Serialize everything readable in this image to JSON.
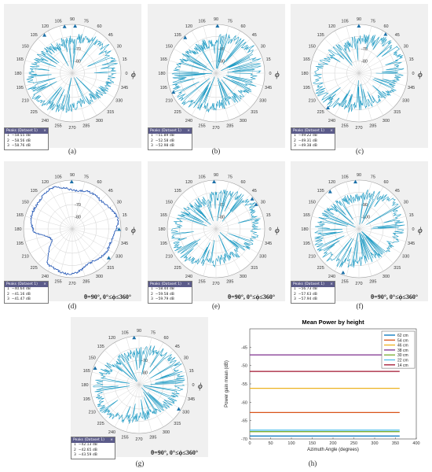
{
  "captions": [
    "(a)",
    "(b)",
    "(c)",
    "(d)",
    "(e)",
    "(f)",
    "(g)",
    "(h)"
  ],
  "theta_label": "θ=90°, 0°≤ϕ≤360°",
  "phi_symbol": "ϕ",
  "colors": {
    "trace": "#1f9bc4",
    "trace_dark": "#2a5cb8",
    "marker": "#1a6fa8",
    "grid": "#cfcfcf",
    "panel_bg": "#f0f0f0"
  },
  "chart_data": [
    {
      "id": "a",
      "type": "polar",
      "angle_ticks": [
        "0",
        "15",
        "30",
        "45",
        "60",
        "75",
        "90",
        "105",
        "120",
        "135",
        "150",
        "165",
        "180",
        "195",
        "210",
        "225",
        "240",
        "255",
        "270",
        "285",
        "300",
        "315",
        "330",
        "345"
      ],
      "radial_ticks": [
        "-80",
        "-70"
      ],
      "peaks_title": "Peaks (Dataset 1)",
      "peaks": [
        {
          "n": "1",
          "v": "−58.55 dB"
        },
        {
          "n": "2",
          "v": "−58.56 dB"
        },
        {
          "n": "3",
          "v": "−58.76 dB"
        }
      ]
    },
    {
      "id": "b",
      "type": "polar",
      "angle_ticks": [
        "0",
        "15",
        "30",
        "45",
        "60",
        "75",
        "90",
        "105",
        "120",
        "135",
        "150",
        "165",
        "180",
        "195",
        "210",
        "225",
        "240",
        "255",
        "270",
        "285",
        "300",
        "315",
        "330",
        "345"
      ],
      "radial_ticks": [
        "-90",
        "-80"
      ],
      "peaks_title": "Peaks (Dataset 1)",
      "peaks": [
        {
          "n": "1",
          "v": "−51.89 dB"
        },
        {
          "n": "2",
          "v": "−52.58 dB"
        },
        {
          "n": "3",
          "v": "−52.98 dB"
        }
      ]
    },
    {
      "id": "c",
      "type": "polar",
      "angle_ticks": [
        "0",
        "15",
        "30",
        "45",
        "60",
        "75",
        "90",
        "105",
        "120",
        "135",
        "150",
        "165",
        "180",
        "195",
        "210",
        "225",
        "240",
        "255",
        "270",
        "285",
        "300",
        "315",
        "330",
        "345"
      ],
      "radial_ticks": [
        "-80",
        "-70"
      ],
      "peaks_title": "Peaks (Dataset 1)",
      "peaks": [
        {
          "n": "1",
          "v": "−49.22 dB"
        },
        {
          "n": "2",
          "v": "−49.31 dB"
        },
        {
          "n": "3",
          "v": "−49.38 dB"
        }
      ]
    },
    {
      "id": "d",
      "type": "polar",
      "angle_ticks": [
        "0",
        "15",
        "30",
        "45",
        "60",
        "75",
        "90",
        "105",
        "120",
        "135",
        "150",
        "165",
        "180",
        "195",
        "210",
        "225",
        "240",
        "255",
        "270",
        "285",
        "300",
        "315",
        "330",
        "345"
      ],
      "radial_ticks": [
        "-80",
        "-70"
      ],
      "peaks_title": "Peaks (Dataset 1)",
      "peaks": [
        {
          "n": "1",
          "v": "−40.64 dB"
        },
        {
          "n": "2",
          "v": "−41.16 dB"
        },
        {
          "n": "3",
          "v": "−41.47 dB"
        }
      ]
    },
    {
      "id": "e",
      "type": "polar",
      "angle_ticks": [
        "0",
        "15",
        "30",
        "45",
        "60",
        "75",
        "90",
        "105",
        "120",
        "135",
        "150",
        "165",
        "180",
        "195",
        "210",
        "225",
        "240",
        "255",
        "270",
        "285",
        "300",
        "315",
        "330",
        "345"
      ],
      "radial_ticks": [
        "-80",
        "-70"
      ],
      "peaks_title": "Peaks (Dataset 1)",
      "peaks": [
        {
          "n": "1",
          "v": "−58.44 dB"
        },
        {
          "n": "2",
          "v": "−59.58 dB"
        },
        {
          "n": "3",
          "v": "−59.79 dB"
        }
      ]
    },
    {
      "id": "f",
      "type": "polar",
      "angle_ticks": [
        "0",
        "15",
        "30",
        "45",
        "60",
        "75",
        "90",
        "105",
        "120",
        "135",
        "150",
        "165",
        "180",
        "195",
        "210",
        "225",
        "240",
        "255",
        "270",
        "285",
        "300",
        "315",
        "330",
        "345"
      ],
      "radial_ticks": [
        "-100",
        "-90"
      ],
      "peaks_title": "Peaks (Dataset 1)",
      "peaks": [
        {
          "n": "1",
          "v": "−56.73 dB"
        },
        {
          "n": "2",
          "v": "−57.63 dB"
        },
        {
          "n": "3",
          "v": "−57.94 dB"
        }
      ]
    },
    {
      "id": "g",
      "type": "polar",
      "angle_ticks": [
        "0",
        "15",
        "30",
        "45",
        "60",
        "75",
        "90",
        "105",
        "120",
        "135",
        "150",
        "165",
        "180",
        "195",
        "210",
        "225",
        "240",
        "255",
        "270",
        "285",
        "300",
        "315",
        "330",
        "345"
      ],
      "radial_ticks": [
        "-80",
        "-70"
      ],
      "peaks_title": "Peaks (Dataset 1)",
      "peaks": [
        {
          "n": "1",
          "v": "−42.13 dB"
        },
        {
          "n": "2",
          "v": "−42.65 dB"
        },
        {
          "n": "3",
          "v": "−43.59 dB"
        }
      ]
    },
    {
      "id": "h",
      "type": "line",
      "title": "Mean Power by height",
      "xlabel": "Azimuth Angle (degrees)",
      "ylabel": "Power gain mean (dB)",
      "xlim": [
        0,
        400
      ],
      "ylim": [
        -70,
        -40
      ],
      "x_ticks": [
        0,
        50,
        100,
        150,
        200,
        250,
        300,
        350,
        400
      ],
      "y_ticks": [
        -70,
        -65,
        -60,
        -55,
        -50,
        -45
      ],
      "x": [
        0,
        360
      ],
      "series": [
        {
          "name": "62 cm",
          "color": "#0072bd",
          "value": -69.2
        },
        {
          "name": "54 cm",
          "color": "#d95319",
          "value": -62.8
        },
        {
          "name": "46 cm",
          "color": "#edb120",
          "value": -56.2
        },
        {
          "name": "38 cm",
          "color": "#7e2f8e",
          "value": -47.1
        },
        {
          "name": "30 cm",
          "color": "#77ac30",
          "value": -68.0
        },
        {
          "name": "22 cm",
          "color": "#4dbeee",
          "value": -67.6
        },
        {
          "name": "14 cm",
          "color": "#a2142f",
          "value": -51.6
        }
      ]
    }
  ]
}
